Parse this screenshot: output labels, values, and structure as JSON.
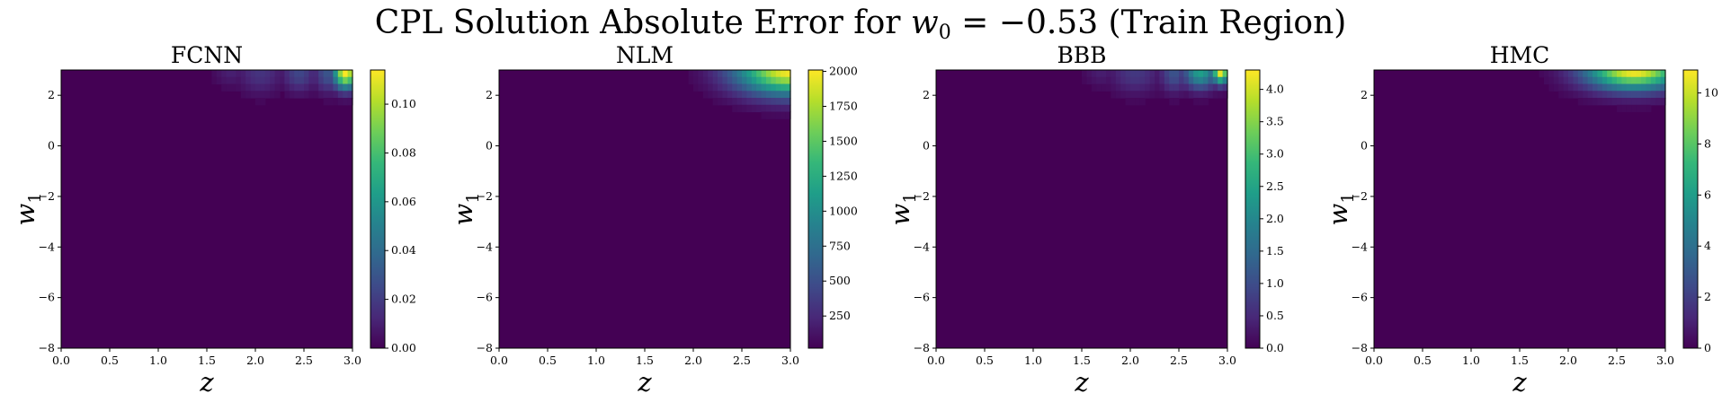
{
  "figure": {
    "suptitle_prefix": "CPL Solution Absolute Error for ",
    "suptitle_var": "w",
    "suptitle_sub": "0",
    "suptitle_suffix": " = −0.53 (Train Region)"
  },
  "colormap": {
    "name": "viridis",
    "stops": [
      "#440154",
      "#482878",
      "#3e4a89",
      "#31688e",
      "#26828e",
      "#1f9e89",
      "#35b779",
      "#6ece58",
      "#b5de2b",
      "#fde725"
    ]
  },
  "chart_data": [
    {
      "type": "heatmap",
      "title": "FCNN",
      "xlabel": "z",
      "ylabel_var": "w",
      "ylabel_sub": "1",
      "xlim": [
        0,
        3
      ],
      "ylim": [
        -8,
        3
      ],
      "x_ticks": [
        "0.0",
        "0.5",
        "1.0",
        "1.5",
        "2.0",
        "2.5",
        "3.0"
      ],
      "y_ticks": [
        "2",
        "0",
        "−2",
        "−4",
        "−6",
        "−8"
      ],
      "x_tick_values": [
        0,
        0.5,
        1,
        1.5,
        2,
        2.5,
        3
      ],
      "y_tick_values": [
        2,
        0,
        -2,
        -4,
        -6,
        -8
      ],
      "colorbar": {
        "vmin": 0,
        "vmax": 0.114,
        "ticks": [
          "0.00",
          "0.02",
          "0.04",
          "0.06",
          "0.08",
          "0.10"
        ],
        "tick_values": [
          0,
          0.02,
          0.04,
          0.06,
          0.08,
          0.1
        ]
      },
      "error_hotspots": [
        {
          "z": 2.93,
          "w1": 2.9,
          "value": 0.114,
          "z_spread": 0.09,
          "w1_spread": 0.45
        },
        {
          "z": 2.75,
          "w1": 2.85,
          "value": 0.03,
          "z_spread": 0.1,
          "w1_spread": 0.5
        },
        {
          "z": 2.45,
          "w1": 2.85,
          "value": 0.024,
          "z_spread": 0.12,
          "w1_spread": 0.5
        },
        {
          "z": 2.05,
          "w1": 2.85,
          "value": 0.017,
          "z_spread": 0.16,
          "w1_spread": 0.55
        },
        {
          "z": 1.75,
          "w1": 2.9,
          "value": 0.01,
          "z_spread": 0.12,
          "w1_spread": 0.4
        }
      ]
    },
    {
      "type": "heatmap",
      "title": "NLM",
      "xlabel": "z",
      "ylabel_var": "w",
      "ylabel_sub": "1",
      "xlim": [
        0,
        3
      ],
      "ylim": [
        -8,
        3
      ],
      "x_ticks": [
        "0.0",
        "0.5",
        "1.0",
        "1.5",
        "2.0",
        "2.5",
        "3.0"
      ],
      "y_ticks": [
        "2",
        "0",
        "−2",
        "−4",
        "−6",
        "−8"
      ],
      "x_tick_values": [
        0,
        0.5,
        1,
        1.5,
        2,
        2.5,
        3
      ],
      "y_tick_values": [
        2,
        0,
        -2,
        -4,
        -6,
        -8
      ],
      "colorbar": {
        "vmin": 20,
        "vmax": 2010,
        "ticks": [
          "250",
          "500",
          "750",
          "1000",
          "1250",
          "1500",
          "1750",
          "2000"
        ],
        "tick_values": [
          250,
          500,
          750,
          1000,
          1250,
          1500,
          1750,
          2000
        ]
      },
      "error_hotspots": [
        {
          "z": 3.0,
          "w1": 3.0,
          "value": 2010,
          "z_spread": 0.4,
          "w1_spread": 0.7
        }
      ]
    },
    {
      "type": "heatmap",
      "title": "BBB",
      "xlabel": "z",
      "ylabel_var": "w",
      "ylabel_sub": "1",
      "xlim": [
        0,
        3
      ],
      "ylim": [
        -8,
        3
      ],
      "x_ticks": [
        "0.0",
        "0.5",
        "1.0",
        "1.5",
        "2.0",
        "2.5",
        "3.0"
      ],
      "y_ticks": [
        "2",
        "0",
        "−2",
        "−4",
        "−6",
        "−8"
      ],
      "x_tick_values": [
        0,
        0.5,
        1,
        1.5,
        2,
        2.5,
        3
      ],
      "y_tick_values": [
        2,
        0,
        -2,
        -4,
        -6,
        -8
      ],
      "colorbar": {
        "vmin": 0,
        "vmax": 4.3,
        "ticks": [
          "0.0",
          "0.5",
          "1.0",
          "1.5",
          "2.0",
          "2.5",
          "3.0",
          "3.5",
          "4.0"
        ],
        "tick_values": [
          0,
          0.5,
          1,
          1.5,
          2,
          2.5,
          3,
          3.5,
          4
        ]
      },
      "error_hotspots": [
        {
          "z": 2.93,
          "w1": 2.95,
          "value": 4.3,
          "z_spread": 0.06,
          "w1_spread": 0.35
        },
        {
          "z": 2.72,
          "w1": 2.9,
          "value": 2.4,
          "z_spread": 0.12,
          "w1_spread": 0.45
        },
        {
          "z": 2.45,
          "w1": 2.85,
          "value": 1.1,
          "z_spread": 0.1,
          "w1_spread": 0.5
        },
        {
          "z": 2.05,
          "w1": 2.85,
          "value": 0.7,
          "z_spread": 0.18,
          "w1_spread": 0.55
        },
        {
          "z": 1.7,
          "w1": 2.9,
          "value": 0.35,
          "z_spread": 0.12,
          "w1_spread": 0.4
        }
      ]
    },
    {
      "type": "heatmap",
      "title": "HMC",
      "xlabel": "z",
      "ylabel_var": "w",
      "ylabel_sub": "1",
      "xlim": [
        0,
        3
      ],
      "ylim": [
        -8,
        3
      ],
      "x_ticks": [
        "0.0",
        "0.5",
        "1.0",
        "1.5",
        "2.0",
        "2.5",
        "3.0"
      ],
      "y_ticks": [
        "2",
        "0",
        "−2",
        "−4",
        "−6",
        "−8"
      ],
      "x_tick_values": [
        0,
        0.5,
        1,
        1.5,
        2,
        2.5,
        3
      ],
      "y_tick_values": [
        2,
        0,
        -2,
        -4,
        -6,
        -8
      ],
      "colorbar": {
        "vmin": 0,
        "vmax": 10.9,
        "ticks": [
          "0",
          "2",
          "4",
          "6",
          "8",
          "10"
        ],
        "tick_values": [
          0,
          2,
          4,
          6,
          8,
          10
        ]
      },
      "error_hotspots": [
        {
          "z": 2.68,
          "w1": 3.0,
          "value": 10.9,
          "z_spread": 0.35,
          "w1_spread": 0.55
        }
      ]
    }
  ]
}
